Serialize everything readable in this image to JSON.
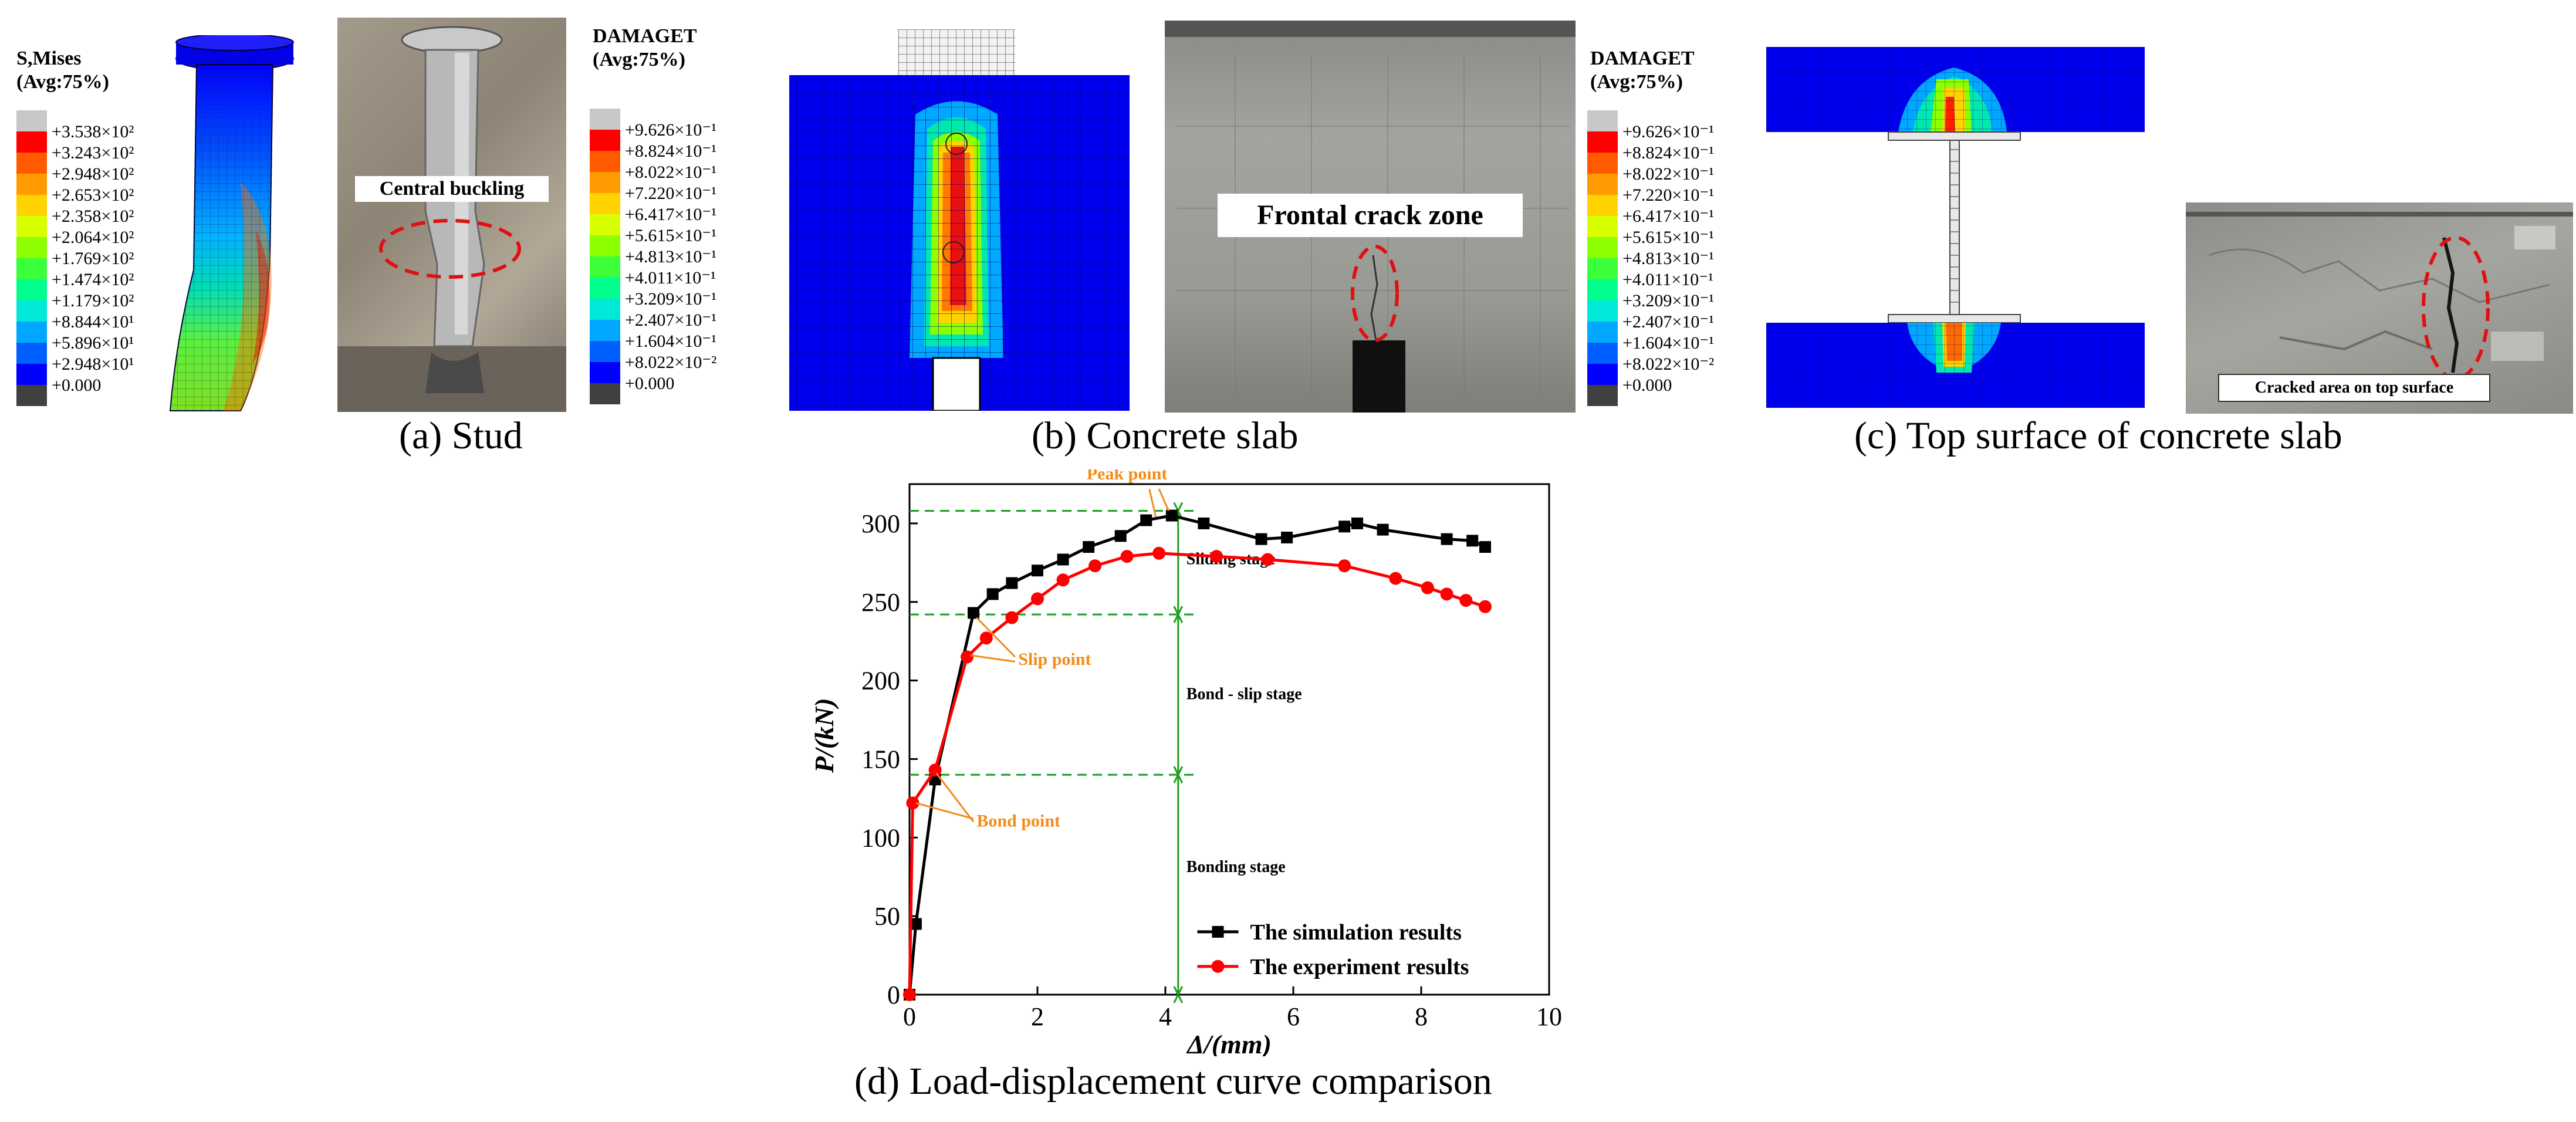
{
  "panel_a": {
    "legend_title_1": "S,Mises",
    "legend_title_2": "(Avg:75%)",
    "legend_values": [
      "+3.538×10²",
      "+3.243×10²",
      "+2.948×10²",
      "+2.653×10²",
      "+2.358×10²",
      "+2.064×10²",
      "+1.769×10²",
      "+1.474×10²",
      "+1.179×10²",
      "+8.844×10¹",
      "+5.896×10¹",
      "+2.948×10¹",
      "+0.000"
    ],
    "photo_label": "Central buckling",
    "caption": "(a) Stud"
  },
  "panel_b": {
    "legend_title_1": "DAMAGET",
    "legend_title_2": "(Avg:75%)",
    "legend_values": [
      "+9.626×10⁻¹",
      "+8.824×10⁻¹",
      "+8.022×10⁻¹",
      "+7.220×10⁻¹",
      "+6.417×10⁻¹",
      "+5.615×10⁻¹",
      "+4.813×10⁻¹",
      "+4.011×10⁻¹",
      "+3.209×10⁻¹",
      "+2.407×10⁻¹",
      "+1.604×10⁻¹",
      "+8.022×10⁻²",
      "+0.000"
    ],
    "photo_label": "Frontal crack zone",
    "caption": "(b) Concrete slab"
  },
  "panel_c": {
    "legend_title_1": "DAMAGET",
    "legend_title_2": "(Avg:75%)",
    "legend_values": [
      "+9.626×10⁻¹",
      "+8.824×10⁻¹",
      "+8.022×10⁻¹",
      "+7.220×10⁻¹",
      "+6.417×10⁻¹",
      "+5.615×10⁻¹",
      "+4.813×10⁻¹",
      "+4.011×10⁻¹",
      "+3.209×10⁻¹",
      "+2.407×10⁻¹",
      "+1.604×10⁻¹",
      "+8.022×10⁻²",
      "+0.000"
    ],
    "photo_label": "Cracked area on top surface",
    "caption": "(c) Top surface of concrete slab"
  },
  "colors": {
    "contour": [
      "#c8c8c8",
      "#ff0000",
      "#ff5a00",
      "#ff9a00",
      "#ffd200",
      "#d8ff00",
      "#8cff00",
      "#3cff3c",
      "#00ff8c",
      "#00e8d8",
      "#00a8ff",
      "#0060ff",
      "#0000ff",
      "#404040"
    ],
    "simulation": "#000000",
    "experiment": "#ff0000",
    "stage_lines": "#1aa01a",
    "annotation": "#f28c1a"
  },
  "panel_d": {
    "caption": "(d) Load-displacement curve comparison",
    "annotations": {
      "peak": "Peak point",
      "slip": "Slip point",
      "bond": "Bond point",
      "sliding_stage": "Sliding stage",
      "bond_slip_stage": "Bond - slip stage",
      "bonding_stage": "Bonding stage"
    }
  },
  "chart_data": {
    "type": "line",
    "title": "",
    "xlabel": "Δ/(mm)",
    "ylabel": "P/(kN)",
    "xlim": [
      0,
      10
    ],
    "ylim": [
      0,
      325
    ],
    "xticks": [
      0,
      2,
      4,
      6,
      8,
      10
    ],
    "yticks": [
      0,
      50,
      100,
      150,
      200,
      250,
      300
    ],
    "stage_levels": [
      308,
      242,
      140
    ],
    "stage_x": 4.2,
    "series": [
      {
        "name": "The simulation results",
        "marker": "square",
        "x": [
          0.0,
          0.1,
          0.4,
          1.0,
          1.3,
          1.6,
          2.0,
          2.4,
          2.8,
          3.3,
          3.7,
          4.1,
          4.6,
          5.5,
          5.9,
          6.8,
          7.0,
          7.4,
          8.4,
          8.8,
          9.0
        ],
        "y": [
          0,
          45,
          137,
          243,
          255,
          262,
          270,
          277,
          285,
          292,
          302,
          305,
          300,
          290,
          291,
          298,
          300,
          296,
          290,
          289,
          285
        ]
      },
      {
        "name": "The experiment results",
        "marker": "circle",
        "x": [
          0.0,
          0.05,
          0.4,
          0.9,
          1.2,
          1.6,
          2.0,
          2.4,
          2.9,
          3.4,
          3.9,
          4.8,
          5.6,
          6.8,
          7.6,
          8.1,
          8.4,
          8.7,
          9.0
        ],
        "y": [
          0,
          122,
          143,
          215,
          227,
          240,
          252,
          264,
          273,
          279,
          281,
          279,
          277,
          273,
          265,
          259,
          255,
          251,
          247
        ]
      }
    ]
  }
}
